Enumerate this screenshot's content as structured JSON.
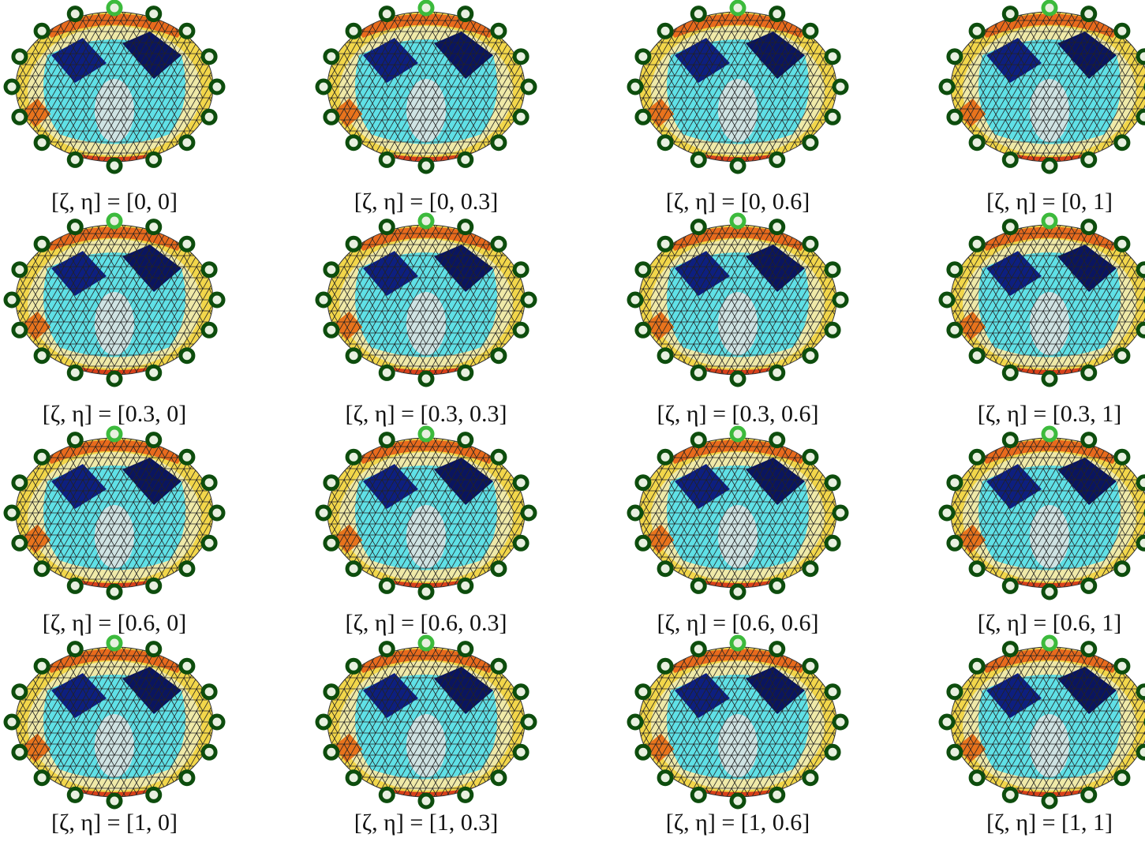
{
  "rows": [
    [
      "[ζ, η] = [0, 0]",
      "[ζ, η] = [0, 0.3]",
      "[ζ, η] = [0, 0.6]",
      "[ζ, η] = [0, 1]"
    ],
    [
      "[ζ, η] = [0.3, 0]",
      "[ζ, η] = [0.3, 0.3]",
      "[ζ, η] = [0.3, 0.6]",
      "[ζ, η] = [0.3, 1]"
    ],
    [
      "[ζ, η] = [0.6, 0]",
      "[ζ, η] = [0.6, 0.3]",
      "[ζ, η] = [0.6, 0.6]",
      "[ζ, η] = [0.6, 1]"
    ],
    [
      "[ζ, η] = [1, 0]",
      "[ζ, η] = [1, 0.3]",
      "[ζ, η] = [1, 0.6]",
      "[ζ, η] = [1, 1]"
    ]
  ]
}
